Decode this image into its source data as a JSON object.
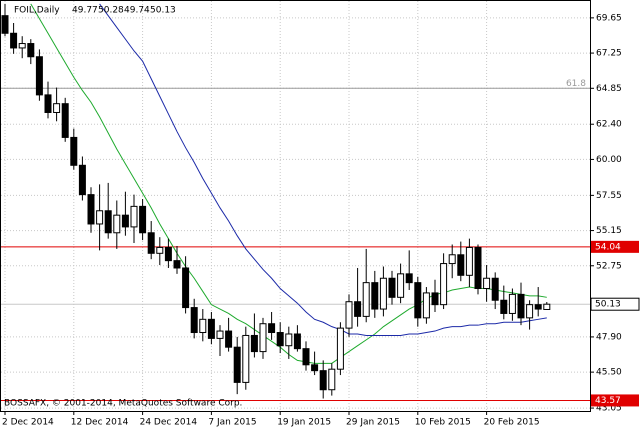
{
  "chart_data": {
    "type": "candlestick",
    "title": "FOIL,Daily",
    "copyright": "BOSSAFX, © 2001-2014, MetaQuotes Software Corp.",
    "categories": [
      "2 Dec 2014",
      null,
      null,
      null,
      null,
      null,
      null,
      null,
      "12 Dec 2014",
      null,
      null,
      null,
      null,
      null,
      null,
      null,
      "24 Dec 2014",
      null,
      null,
      null,
      null,
      null,
      null,
      null,
      "7 Jan 2015",
      null,
      null,
      null,
      null,
      null,
      null,
      null,
      "19 Jan 2015",
      null,
      null,
      null,
      null,
      null,
      null,
      null,
      "29 Jan 2015",
      null,
      null,
      null,
      null,
      null,
      null,
      null,
      "10 Feb 2015",
      null,
      null,
      null,
      null,
      null,
      null,
      null,
      "20 Feb 2015",
      null,
      null,
      null,
      null,
      null,
      null,
      null
    ],
    "open": [
      69.8,
      68.6,
      67.6,
      67.9,
      67.0,
      64.4,
      63.2,
      63.8,
      61.5,
      59.6,
      57.6,
      55.6,
      56.5,
      55.0,
      56.2,
      55.4,
      56.8,
      55.0,
      53.6,
      54.0,
      53.1,
      52.6,
      49.9,
      48.2,
      49.1,
      47.8,
      48.3,
      47.2,
      44.8,
      48.0,
      46.9,
      48.8,
      48.2,
      47.3,
      48.1,
      47.1,
      46.0,
      45.6,
      44.3,
      45.7,
      48.5,
      50.3,
      49.3,
      51.6,
      49.8,
      51.9,
      50.6,
      52.2,
      51.6,
      49.2,
      50.9,
      50.1,
      52.9,
      53.5,
      52.1,
      54.0,
      51.2,
      51.9,
      50.4,
      49.5,
      50.8,
      49.2,
      50.1,
      49.77
    ],
    "high": [
      70.6,
      69.3,
      68.4,
      68.2,
      67.5,
      65.3,
      64.9,
      64.2,
      62.1,
      60.2,
      58.1,
      58.3,
      58.4,
      57.2,
      57.8,
      57.6,
      57.3,
      55.8,
      54.7,
      54.6,
      54.1,
      53.4,
      50.5,
      49.8,
      49.6,
      48.7,
      49.2,
      47.9,
      48.6,
      49.5,
      49.2,
      49.6,
      48.9,
      48.6,
      48.7,
      47.6,
      46.9,
      46.3,
      46.1,
      48.9,
      50.8,
      52.6,
      53.9,
      52.4,
      52.7,
      52.4,
      52.9,
      53.8,
      52.0,
      51.3,
      51.8,
      53.6,
      54.2,
      54.4,
      54.6,
      54.2,
      52.8,
      52.3,
      51.4,
      51.2,
      51.6,
      50.4,
      51.3,
      50.28
    ],
    "low": [
      68.4,
      67.2,
      66.9,
      66.5,
      64.0,
      62.8,
      62.6,
      61.2,
      59.3,
      57.2,
      55.0,
      53.8,
      54.6,
      53.9,
      54.8,
      54.3,
      54.5,
      53.2,
      52.8,
      52.6,
      52.2,
      49.5,
      47.8,
      47.6,
      47.4,
      46.6,
      46.9,
      44.0,
      44.3,
      46.5,
      46.4,
      47.7,
      46.8,
      46.4,
      46.9,
      45.6,
      45.3,
      43.7,
      43.9,
      45.3,
      47.9,
      48.6,
      48.9,
      49.2,
      49.3,
      50.1,
      50.2,
      51.1,
      48.6,
      48.8,
      49.6,
      49.8,
      51.9,
      51.7,
      51.3,
      50.8,
      50.3,
      49.8,
      49.1,
      49.0,
      48.7,
      48.4,
      49.3,
      49.74
    ],
    "close": [
      68.6,
      67.6,
      67.9,
      67.0,
      64.4,
      63.2,
      63.8,
      61.5,
      59.6,
      57.6,
      55.6,
      56.5,
      55.0,
      56.2,
      55.4,
      56.8,
      55.0,
      53.6,
      54.0,
      53.1,
      52.6,
      49.9,
      48.2,
      49.1,
      47.8,
      48.3,
      47.2,
      44.8,
      48.0,
      46.9,
      48.8,
      48.2,
      47.3,
      48.1,
      47.1,
      46.0,
      45.6,
      44.3,
      45.7,
      48.5,
      50.3,
      49.3,
      51.6,
      49.8,
      51.9,
      50.6,
      52.2,
      51.6,
      49.2,
      50.9,
      50.1,
      52.9,
      53.5,
      52.1,
      54.0,
      51.2,
      51.9,
      50.4,
      49.5,
      50.8,
      49.2,
      50.1,
      49.8,
      50.13
    ],
    "up_color": "#ffffff",
    "down_color": "#000000",
    "candle_stroke": "#000000",
    "series": [
      {
        "color": "#1faa2e",
        "values": [
          null,
          null,
          null,
          70.6,
          69.6,
          68.6,
          67.6,
          66.6,
          65.6,
          64.7,
          63.9,
          62.9,
          61.8,
          60.7,
          59.7,
          58.7,
          57.7,
          56.7,
          55.6,
          54.6,
          53.6,
          52.7,
          51.9,
          51.0,
          50.1,
          49.8,
          49.5,
          49.1,
          48.8,
          48.4,
          48.0,
          47.6,
          47.2,
          46.7,
          46.3,
          46.2,
          46.1,
          46.1,
          46.1,
          46.5,
          46.9,
          47.3,
          47.7,
          48.1,
          48.6,
          49.0,
          49.4,
          49.8,
          50.1,
          50.5,
          50.8,
          50.9,
          51.1,
          51.2,
          51.3,
          51.2,
          51.2,
          51.1,
          51.0,
          50.9,
          50.8,
          50.7,
          50.7,
          50.6
        ]
      },
      {
        "color": "#1c2aa8",
        "values": [
          null,
          null,
          null,
          null,
          null,
          null,
          null,
          null,
          null,
          null,
          null,
          70.6,
          69.8,
          69.0,
          68.2,
          67.4,
          66.7,
          65.5,
          64.3,
          63.1,
          61.9,
          60.8,
          59.8,
          58.7,
          57.7,
          56.7,
          55.8,
          54.8,
          53.9,
          53.2,
          52.5,
          51.9,
          51.2,
          50.7,
          50.2,
          49.6,
          49.1,
          48.9,
          48.6,
          48.4,
          48.1,
          48.1,
          48.0,
          48.0,
          48.0,
          48.0,
          48.0,
          48.1,
          48.1,
          48.2,
          48.3,
          48.5,
          48.6,
          48.6,
          48.7,
          48.7,
          48.8,
          48.8,
          48.9,
          48.9,
          48.9,
          49.0,
          49.1,
          49.2
        ]
      }
    ],
    "levels": [
      {
        "value": 64.85,
        "label": "61.8",
        "color": "#9a9a9a"
      },
      {
        "value": 54.04,
        "color": "#e00000"
      },
      {
        "value": 43.57,
        "color": "#e00000"
      }
    ],
    "ylim": [
      42.85,
      70.8
    ],
    "yticks": [
      69.65,
      67.25,
      64.85,
      {
        "value": 62.4,
        "label": "62.40"
      },
      {
        "value": 60,
        "label": "60.00"
      },
      57.55,
      55.15,
      52.75,
      {
        "value": 47.9,
        "label": "47.90"
      },
      {
        "value": 45.5,
        "label": "45.50"
      },
      43.05
    ],
    "grid": true
  }
}
